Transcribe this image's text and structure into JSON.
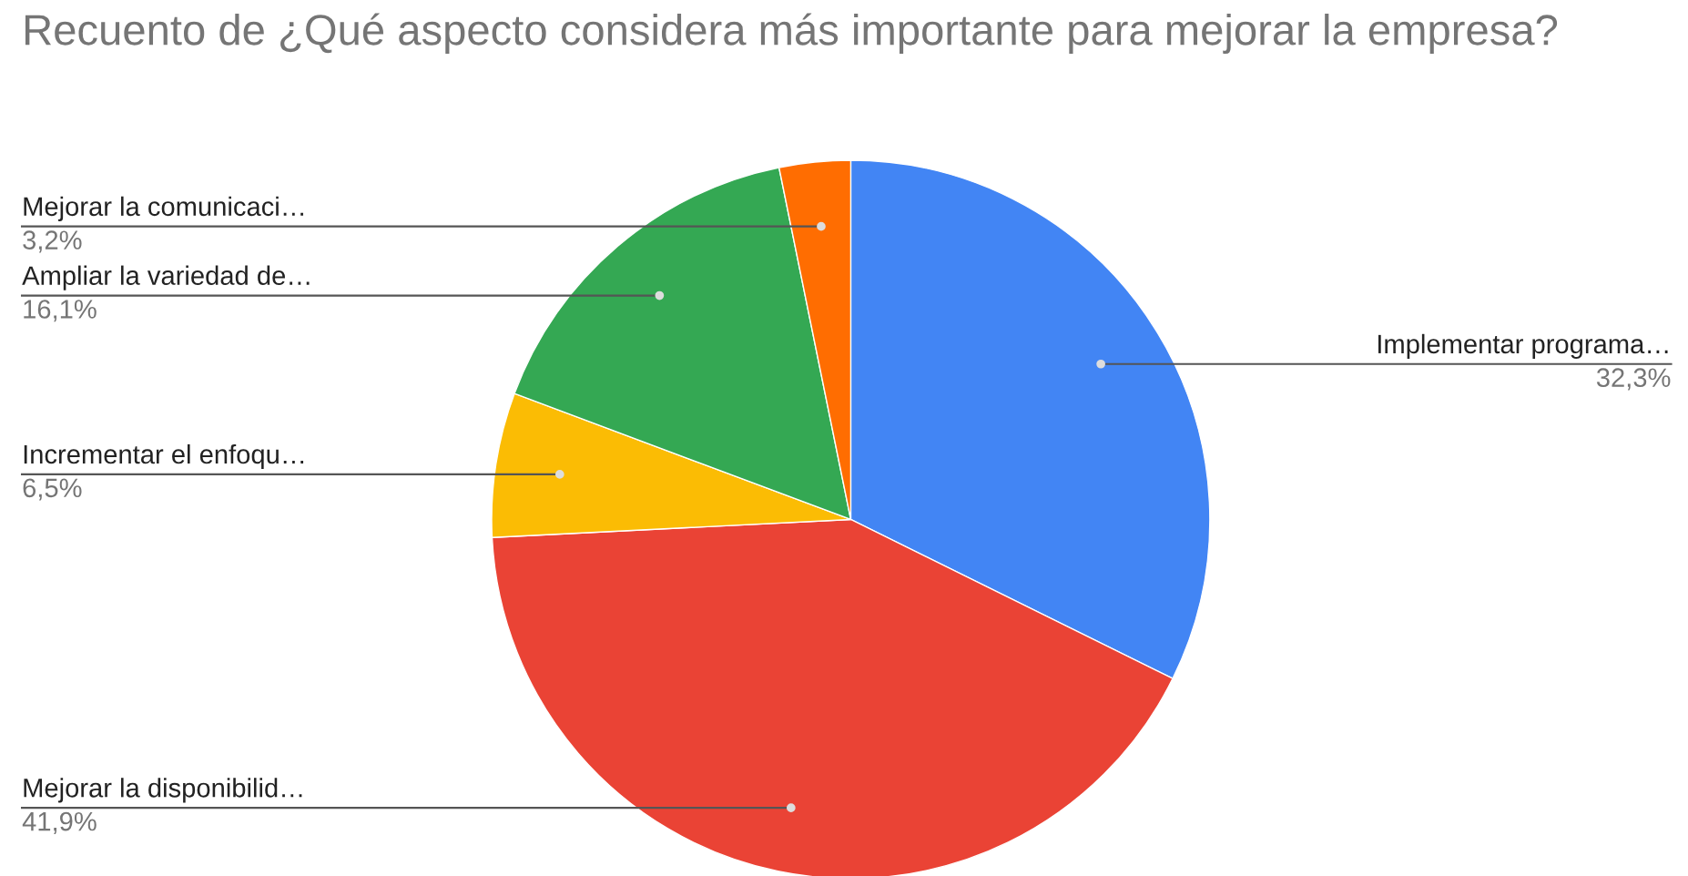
{
  "chart_data": {
    "type": "pie",
    "title": "Recuento de ¿Qué aspecto considera más importante para mejorar la empresa?",
    "categories": [
      "Implementar programa…",
      "Mejorar la disponibilid…",
      "Incrementar el enfoqu…",
      "Ampliar la variedad de…",
      "Mejorar la comunicaci…"
    ],
    "values": [
      32.3,
      41.9,
      6.5,
      16.1,
      3.2
    ],
    "colors": [
      "#4285f4",
      "#ea4335",
      "#fbbc04",
      "#34a853",
      "#ff6d01"
    ],
    "value_labels": [
      "32,3%",
      "41,9%",
      "6,5%",
      "16,1%",
      "3,2%"
    ],
    "legend": false
  }
}
